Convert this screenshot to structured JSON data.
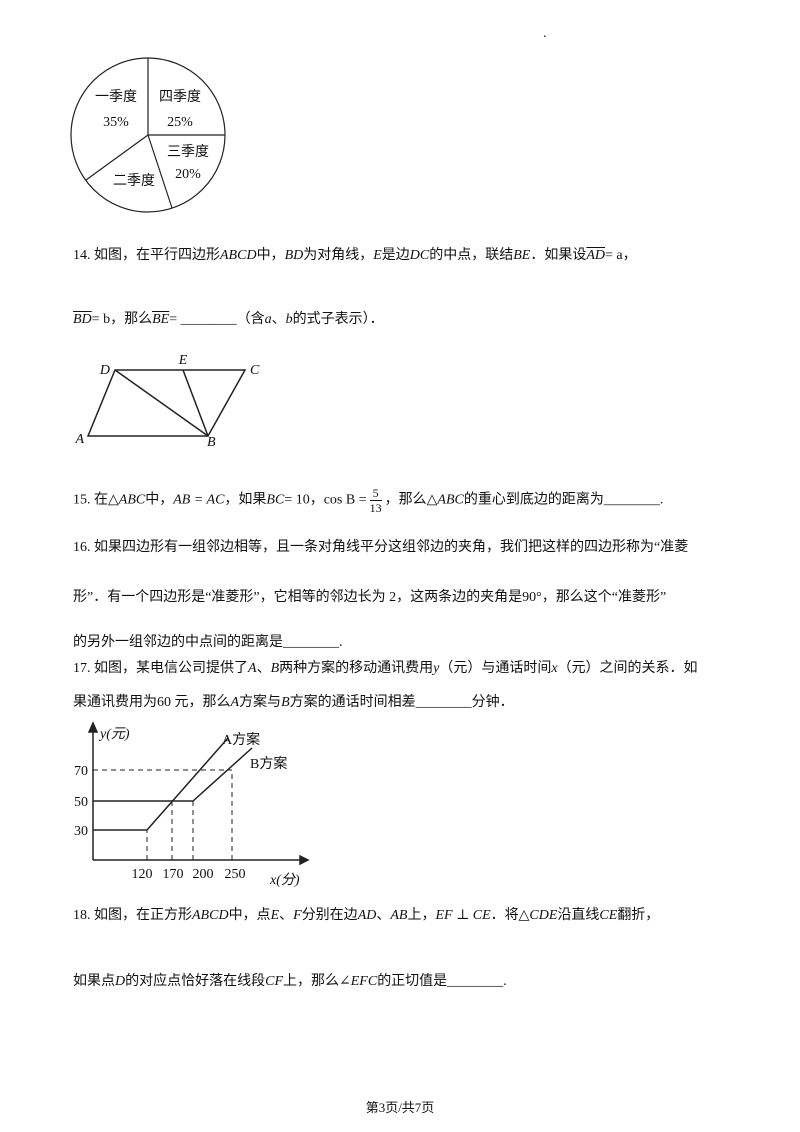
{
  "header_mark": ".",
  "pie_figure": {
    "slices": [
      {
        "name": "一季度",
        "label": "35%"
      },
      {
        "name": "四季度",
        "label": "25%"
      },
      {
        "name": "三季度",
        "label": "20%"
      },
      {
        "name": "二季度"
      }
    ]
  },
  "q14": {
    "line1": [
      "14. 如图，在平行四边形",
      "ABCD",
      "中，",
      "BD",
      "为对角线，",
      "E",
      "是边",
      "DC",
      "的中点，联结",
      "BE",
      "．如果设",
      "AD",
      "= a",
      "，"
    ],
    "line2": [
      "BD",
      "= b",
      "，那么",
      "BE",
      "= ________",
      "（含",
      "a",
      "、",
      "b",
      "的式子表示）．"
    ],
    "figure": {
      "points": [
        "D",
        "E",
        "C",
        "A",
        "B"
      ]
    }
  },
  "q15": {
    "line1": [
      "15. 在△",
      "ABC",
      "中，",
      "AB = AC",
      "，如果",
      "BC",
      "= 10，",
      "cos B =",
      "，那么△",
      "ABC",
      "的重心到底边的距离为________."
    ],
    "fraction": {
      "numerator": "5",
      "denominator": "13"
    }
  },
  "q16": {
    "line1": [
      "16. 如果四边形有一组邻边相等，且一条对角线平分这组邻边的夹角，我们把这样的四边形称为“准菱"
    ],
    "line2": [
      "形”．有一个四边形是“准菱形”，它相等的邻边长为 2，这两条边的夹角是",
      "90°",
      "，那么这个“准菱形”"
    ],
    "line3": [
      "的另外一组邻边的中点间的距离是________."
    ]
  },
  "q17": {
    "line1": [
      "17. 如图，某电信公司提供了",
      "A",
      "、",
      "B",
      "两种方案的移动通讯费用",
      "y",
      "（元）与通话时间",
      "x",
      "（元）之间的关系．如"
    ],
    "line2": [
      "果通讯费用为60 元，那么",
      "A",
      "方案与",
      "B",
      "方案的通话时间相差________分钟．"
    ],
    "figure": {
      "y_label": "y(元)",
      "x_label": "x(分)",
      "yticks": [
        "70",
        "50",
        "30"
      ],
      "xticks": [
        "120",
        "170",
        "200",
        "250"
      ],
      "plan_a": "A方案",
      "plan_b": "B方案"
    }
  },
  "q18": {
    "line1": [
      "18. 如图，在正方形",
      "ABCD",
      "中，点",
      "E",
      "、",
      "F",
      "分别在边",
      "AD",
      "、",
      "AB",
      "上，",
      "EF ⊥ CE",
      "．将",
      "△CDE",
      "沿直线",
      "CE",
      "翻折，"
    ],
    "line2": [
      "如果点",
      "D",
      "的对应点恰好落在线段",
      "CF",
      "上，那么",
      "∠EFC",
      "的正切值是________."
    ]
  },
  "footer": "第3页/共7页"
}
